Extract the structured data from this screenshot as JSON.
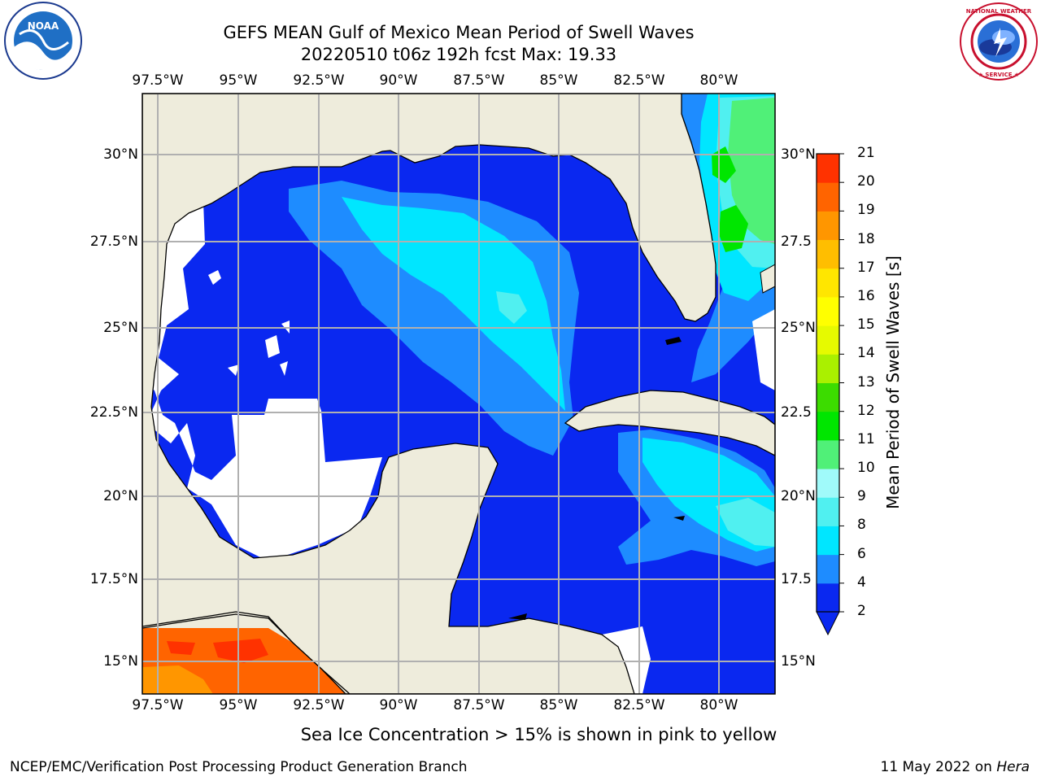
{
  "header": {
    "title": "GEFS MEAN Gulf of Mexico Mean Period of Swell Waves",
    "subtitle": "20220510 t06z 192h fcst   Max: 19.33"
  },
  "logos": {
    "left": "NOAA",
    "right": "NATIONAL WEATHER SERVICE"
  },
  "map": {
    "lon_labels": [
      "97.5°W",
      "95°W",
      "92.5°W",
      "90°W",
      "87.5°W",
      "85°W",
      "82.5°W",
      "80°W"
    ],
    "lat_labels_left": [
      "30°N",
      "27.5°N",
      "25°N",
      "22.5°N",
      "20°N",
      "17.5°N",
      "15°N"
    ],
    "lat_labels_right": [
      "30°N",
      "27.5",
      "25°N",
      "22.5",
      "20°N",
      "17.5",
      "15°N"
    ],
    "land_color": "#eeecdc",
    "no_data_color": "#ffffff",
    "grid_color": "#b0b0b0"
  },
  "colorbar": {
    "label": "Mean Period of Swell Waves [s]",
    "ticks": [
      "2",
      "4",
      "6",
      "8",
      "9",
      "10",
      "11",
      "12",
      "13",
      "14",
      "15",
      "16",
      "17",
      "18",
      "19",
      "20",
      "21"
    ],
    "colors": [
      "#0a28f0",
      "#1e8cff",
      "#00e6ff",
      "#50f0f0",
      "#a0fafa",
      "#50f078",
      "#00e600",
      "#3cdc00",
      "#aaf000",
      "#e6fa00",
      "#ffff00",
      "#ffe600",
      "#ffbe00",
      "#ff9600",
      "#ff6400",
      "#ff3200",
      "#ff0000"
    ],
    "extend": "min"
  },
  "footer": {
    "sea_ice_note": "Sea Ice Concentration > 15% is shown in pink to yellow",
    "branch": "NCEP/EMC/Verification Post Processing Product Generation Branch",
    "date": "11 May 2022 on",
    "machine": "Hera"
  }
}
